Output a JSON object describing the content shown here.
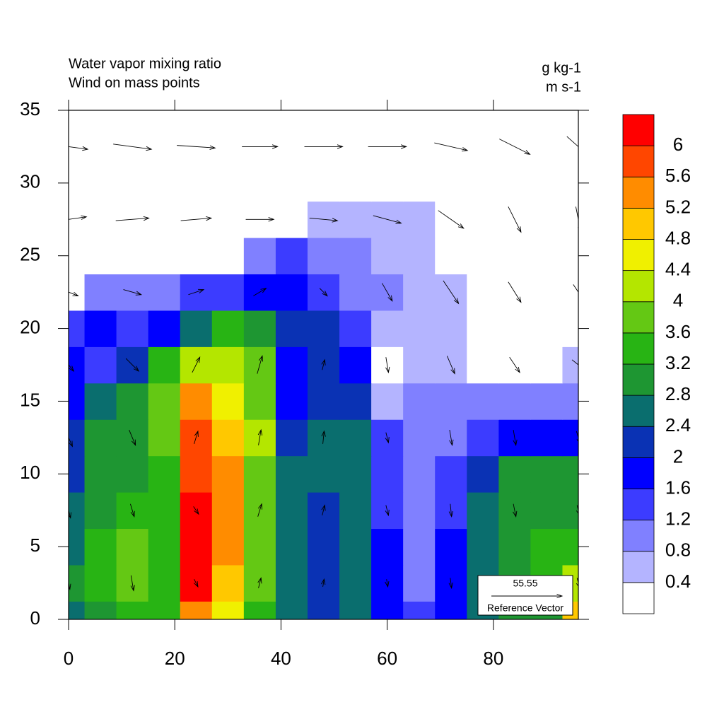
{
  "chart_data": {
    "type": "contour",
    "title": "Water vapor mixing ratio",
    "subtitle": "Wind on mass points",
    "units": "g kg-1",
    "wind_units": "m s-1",
    "xlim": [
      0,
      96
    ],
    "ylim": [
      0,
      35
    ],
    "xticks": [
      0,
      20,
      40,
      60,
      80
    ],
    "yticks": [
      0,
      5,
      10,
      15,
      20,
      25,
      30,
      35
    ],
    "levels": [
      0.4,
      0.8,
      1.2,
      1.6,
      2,
      2.4,
      2.8,
      3.2,
      3.6,
      4,
      4.4,
      4.8,
      5.2,
      5.6,
      6
    ],
    "colors": [
      "#ffffff",
      "#b4b4ff",
      "#8080ff",
      "#3c3cff",
      "#0000ff",
      "#0a32b4",
      "#0a6e6e",
      "#1e9632",
      "#28b414",
      "#64c814",
      "#b4e600",
      "#f0f000",
      "#ffc800",
      "#ff8c00",
      "#ff4600",
      "#ff0000"
    ],
    "x": [
      0,
      6,
      12,
      18,
      24,
      30,
      36,
      42,
      48,
      54,
      60,
      66,
      72,
      78,
      84,
      90,
      96
    ],
    "y": [
      0,
      2.5,
      5,
      7.5,
      10,
      12.5,
      15,
      17.5,
      20,
      22.5,
      25,
      27.5,
      30,
      32.5,
      35
    ],
    "z": [
      [
        2.6,
        3.0,
        3.4,
        3.2,
        5.5,
        4.6,
        3.4,
        2.6,
        2.2,
        2.6,
        1.8,
        1.4,
        1.6,
        2.6,
        2.9,
        3.0,
        5.0
      ],
      [
        2.8,
        3.2,
        3.8,
        3.4,
        6.1,
        5.0,
        3.6,
        2.6,
        2.2,
        2.6,
        1.8,
        1.0,
        1.6,
        2.6,
        3.0,
        3.2,
        4.0
      ],
      [
        2.7,
        3.3,
        3.7,
        3.3,
        6.2,
        5.3,
        3.7,
        2.6,
        2.1,
        2.6,
        1.6,
        0.9,
        1.8,
        2.6,
        3.0,
        3.3,
        3.4
      ],
      [
        2.5,
        3.0,
        3.4,
        3.4,
        6.1,
        5.4,
        3.8,
        2.7,
        2.2,
        2.4,
        1.4,
        0.9,
        1.4,
        2.5,
        3.0,
        3.1,
        3.1
      ],
      [
        2.2,
        2.9,
        3.1,
        3.5,
        5.9,
        5.3,
        3.9,
        2.6,
        2.5,
        2.6,
        1.2,
        0.8,
        1.2,
        2.2,
        2.8,
        3.0,
        2.9
      ],
      [
        2.0,
        2.8,
        2.9,
        3.6,
        5.6,
        5.0,
        4.0,
        2.1,
        2.6,
        2.4,
        1.2,
        0.9,
        1.0,
        1.4,
        1.6,
        1.8,
        1.8
      ],
      [
        1.8,
        2.5,
        2.8,
        3.7,
        5.2,
        4.7,
        3.9,
        1.8,
        2.2,
        2.0,
        0.5,
        1.0,
        0.9,
        0.9,
        0.9,
        0.9,
        1.0
      ],
      [
        1.6,
        1.4,
        2.3,
        3.3,
        4.2,
        4.3,
        3.6,
        1.7,
        2.0,
        1.6,
        0.3,
        0.6,
        0.6,
        0.3,
        0.3,
        0.3,
        0.7
      ],
      [
        1.3,
        1.7,
        1.3,
        1.9,
        2.5,
        3.2,
        2.8,
        2.1,
        2.3,
        1.4,
        0.7,
        0.6,
        0.6,
        0.3,
        0.2,
        0.2,
        0.2
      ],
      [
        0.3,
        0.8,
        0.8,
        0.9,
        1.2,
        1.4,
        1.8,
        1.8,
        1.4,
        1.1,
        0.9,
        0.7,
        0.6,
        0.2,
        0.2,
        0.2,
        0.2
      ],
      [
        0.2,
        0.2,
        0.2,
        0.2,
        0.2,
        0.3,
        0.9,
        1.2,
        1.0,
        0.8,
        0.7,
        0.5,
        0.2,
        0.1,
        0.1,
        0.1,
        0.1
      ],
      [
        0.1,
        0.1,
        0.1,
        0.1,
        0.1,
        0.1,
        0.1,
        0.1,
        0.5,
        0.6,
        0.6,
        0.5,
        0.1,
        0.1,
        0.1,
        0.1,
        0.1
      ],
      [
        0.1,
        0.1,
        0.1,
        0.1,
        0.1,
        0.1,
        0.1,
        0.1,
        0.1,
        0.1,
        0.1,
        0.1,
        0.1,
        0.1,
        0.1,
        0.1,
        0.1
      ],
      [
        0.1,
        0.1,
        0.1,
        0.1,
        0.1,
        0.1,
        0.1,
        0.1,
        0.1,
        0.1,
        0.1,
        0.1,
        0.1,
        0.1,
        0.1,
        0.1,
        0.1
      ],
      [
        0.1,
        0.1,
        0.1,
        0.1,
        0.1,
        0.1,
        0.1,
        0.1,
        0.1,
        0.1,
        0.1,
        0.1,
        0.1,
        0.1,
        0.1,
        0.1,
        0.1
      ]
    ],
    "wind_x": [
      0,
      12,
      24,
      36,
      48,
      60,
      72,
      84,
      96
    ],
    "wind_y": [
      2.5,
      7.5,
      12.5,
      17.5,
      22.5,
      27.5,
      32.5
    ],
    "u": [
      [
        2,
        2,
        3,
        2,
        1,
        1,
        1,
        2,
        2
      ],
      [
        3,
        3,
        4,
        3,
        2,
        2,
        1,
        2,
        2
      ],
      [
        6,
        5,
        3,
        2,
        1,
        2,
        2,
        2,
        3
      ],
      [
        8,
        10,
        6,
        4,
        2,
        2,
        6,
        8,
        10
      ],
      [
        15,
        14,
        12,
        10,
        6,
        8,
        12,
        10,
        8
      ],
      [
        28,
        26,
        24,
        22,
        22,
        22,
        20,
        10,
        4
      ],
      [
        30,
        30,
        30,
        28,
        30,
        30,
        26,
        24,
        18
      ]
    ],
    "v": [
      [
        -10,
        -12,
        -6,
        8,
        6,
        -6,
        -8,
        -10,
        -8
      ],
      [
        -12,
        -10,
        -6,
        10,
        8,
        -8,
        -10,
        -10,
        -8
      ],
      [
        -14,
        -12,
        10,
        12,
        10,
        -8,
        -12,
        -12,
        -10
      ],
      [
        -10,
        -10,
        12,
        14,
        8,
        -12,
        -14,
        -12,
        -8
      ],
      [
        -6,
        -4,
        4,
        6,
        -6,
        -14,
        -18,
        -16,
        -12
      ],
      [
        4,
        2,
        2,
        0,
        -2,
        -6,
        -14,
        -20,
        -20
      ],
      [
        -4,
        -4,
        -2,
        0,
        0,
        0,
        -6,
        -12,
        -16
      ]
    ],
    "reference_vector": {
      "value": 55.55,
      "label": "Reference Vector"
    }
  }
}
